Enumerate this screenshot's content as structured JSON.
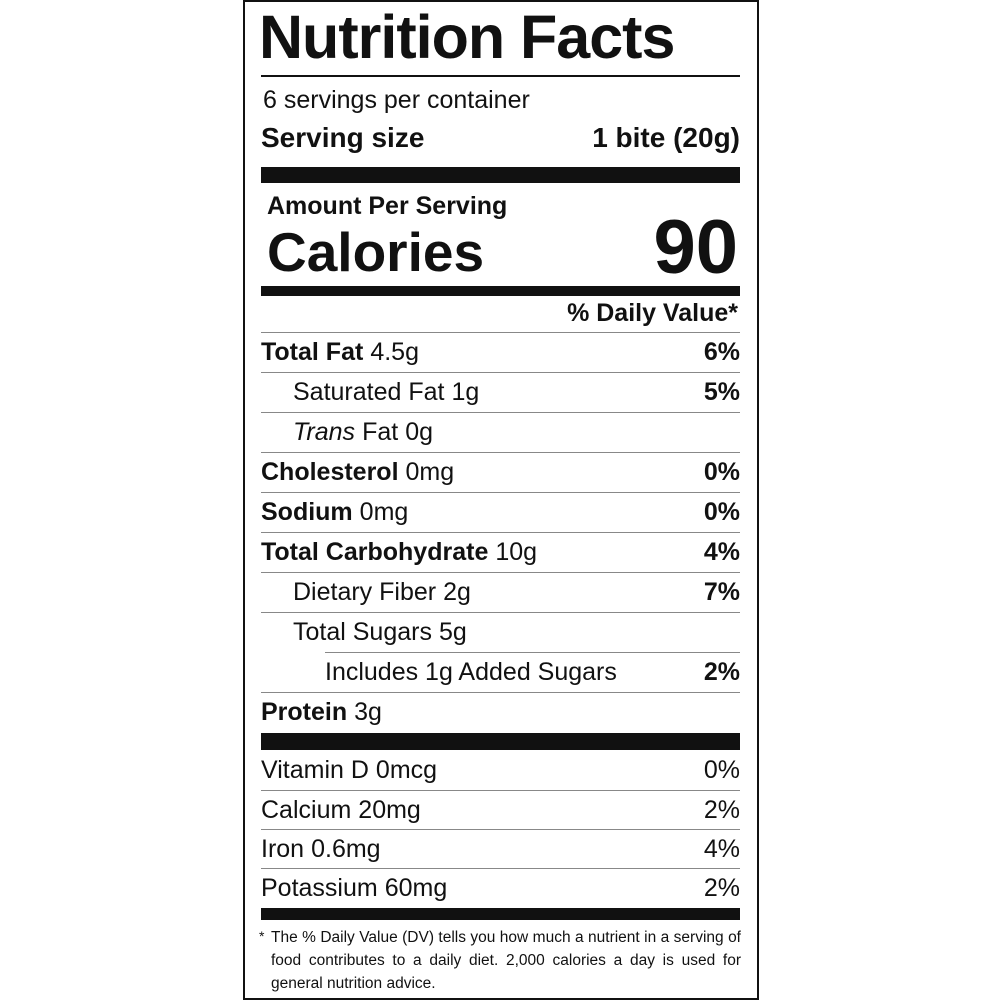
{
  "title": "Nutrition Facts",
  "servings": "6 servings per container",
  "serving_size": {
    "label": "Serving size",
    "value": "1 bite (20g)"
  },
  "amount_per_serving": "Amount Per Serving",
  "calories": {
    "label": "Calories",
    "value": 90
  },
  "daily_value_header": "% Daily Value*",
  "nutrients": [
    {
      "name": "Total Fat",
      "amount": "4.5g",
      "dv": "6%"
    },
    {
      "name": "Saturated Fat",
      "amount": "1g",
      "dv": "5%"
    },
    {
      "name_italic": "Trans",
      "name": "Fat",
      "amount": "0g"
    },
    {
      "name": "Cholesterol",
      "amount": "0mg",
      "dv": "0%"
    },
    {
      "name": "Sodium",
      "amount": "0mg",
      "dv": "0%"
    },
    {
      "name": "Total Carbohydrate",
      "amount": "10g",
      "dv": "4%"
    },
    {
      "name": "Dietary Fiber",
      "amount": "2g",
      "dv": "7%"
    },
    {
      "name": "Total Sugars",
      "amount": "5g"
    },
    {
      "name": "Includes 1g Added Sugars",
      "dv": "2%"
    },
    {
      "name": "Protein",
      "amount": "3g"
    }
  ],
  "vitamins": [
    {
      "name": "Vitamin D",
      "amount": "0mcg",
      "dv": "0%"
    },
    {
      "name": "Calcium",
      "amount": "20mg",
      "dv": "2%"
    },
    {
      "name": "Iron",
      "amount": "0.6mg",
      "dv": "4%"
    },
    {
      "name": "Potassium",
      "amount": "60mg",
      "dv": "2%"
    }
  ],
  "footnote": {
    "mark": "*",
    "text": "The % Daily Value (DV) tells you how much a nutrient in a serving of food contributes to a daily diet. 2,000 calories a day is used for general nutrition advice."
  }
}
